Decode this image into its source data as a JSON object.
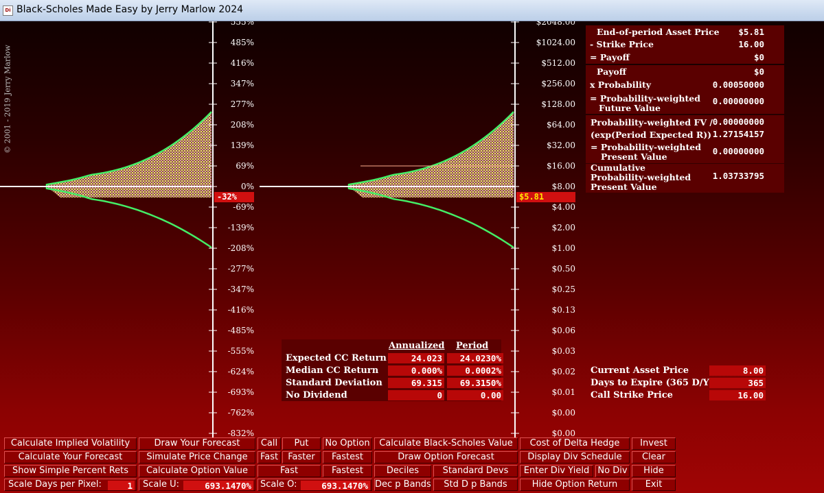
{
  "window": {
    "title": "Black-Scholes Made Easy by Jerry Marlow  2024",
    "icon": "app-icon"
  },
  "copyright": "© 2001 - 2019   Jerry Marlow",
  "left_axis": {
    "labels": [
      "555%",
      "485%",
      "416%",
      "347%",
      "277%",
      "208%",
      "139%",
      "69%",
      "0%",
      "-69%",
      "-139%",
      "-208%",
      "-277%",
      "-347%",
      "-416%",
      "-485%",
      "-555%",
      "-624%",
      "-693%",
      "-762%",
      "-832%"
    ],
    "marker": "-32%"
  },
  "right_axis": {
    "labels": [
      "$2048.00",
      "$1024.00",
      "$512.00",
      "$256.00",
      "$128.00",
      "$64.00",
      "$32.00",
      "$16.00",
      "$8.00",
      "$4.00",
      "$2.00",
      "$1.00",
      "$0.50",
      "$0.25",
      "$0.13",
      "$0.06",
      "$0.03",
      "$0.02",
      "$0.01",
      "$0.00",
      "$0.00"
    ],
    "marker": "$5.81"
  },
  "payoff_panel": {
    "rows": [
      {
        "label": "End-of-period Asset Price",
        "value": "$5.81"
      },
      {
        "label": "-  Strike Price",
        "value": "16.00"
      },
      {
        "label": "= Payoff",
        "value": "$0"
      },
      {
        "label": "Payoff",
        "value": "$0"
      },
      {
        "label": "x Probability",
        "value": "0.00050000"
      },
      {
        "label": "= Probability-weighted",
        "label2": "Future Value",
        "value": "0.00000000"
      },
      {
        "label": "Probability-weighted FV /",
        "value": "0.00000000"
      },
      {
        "label": "(exp(Period Expected R))",
        "value": "1.27154157"
      },
      {
        "label": "= Probability-weighted",
        "label2": "Present Value",
        "value": "0.00000000"
      },
      {
        "label": "Cumulative",
        "label2": "Probability-weighted",
        "label3": "Present Value",
        "value": "1.03733795"
      }
    ]
  },
  "stats": {
    "headers": {
      "annualized": "Annualized",
      "period": "Period"
    },
    "rows": [
      {
        "label": "Expected CC Return",
        "annualized": "24.023",
        "period": "24.0230%"
      },
      {
        "label": "Median CC Return",
        "annualized": "0.000%",
        "period": "0.0002%"
      },
      {
        "label": "Standard Deviation",
        "annualized": "69.315",
        "period": "69.3150%"
      },
      {
        "label": "No Dividend",
        "annualized": "0",
        "period": "0.00"
      }
    ]
  },
  "inputs": {
    "rows": [
      {
        "label": "Current Asset Price",
        "value": "8.00"
      },
      {
        "label": "Days to Expire  (365 D/Y)",
        "value": "365"
      },
      {
        "label": "Call Strike Price",
        "value": "16.00"
      }
    ]
  },
  "buttons": {
    "r1": [
      "Calculate Implied Volatility",
      "Draw Your Forecast",
      "Call",
      "Put",
      "No Option",
      "Calculate Black-Scholes Value",
      "Cost of Delta Hedge",
      "Invest"
    ],
    "r2": [
      "Calculate Your Forecast",
      "Simulate Price Change",
      "Fast",
      "Faster",
      "Fastest",
      "Draw Option Forecast",
      "Display Div Schedule",
      "Clear"
    ],
    "r3": [
      "Show Simple Percent Rets",
      "Calculate Option  Value",
      "Fast",
      "Fastest",
      "Deciles",
      "Standard Devs",
      "Enter Div Yield",
      "No Div",
      "Hide"
    ],
    "r4": [
      "Scale Days per Pixel:",
      "Scale U:",
      "Scale O:",
      "Dec p Bands",
      "Std D p Bands",
      "Hide Option Return",
      "Exit"
    ]
  },
  "fields": {
    "scale_days": "1",
    "scale_u": "693.1470%",
    "scale_o": "693.1470%"
  },
  "colors": {
    "accent_red": "#d01010",
    "curve_green": "#44ee66",
    "panel_dark": "#5a0000"
  }
}
